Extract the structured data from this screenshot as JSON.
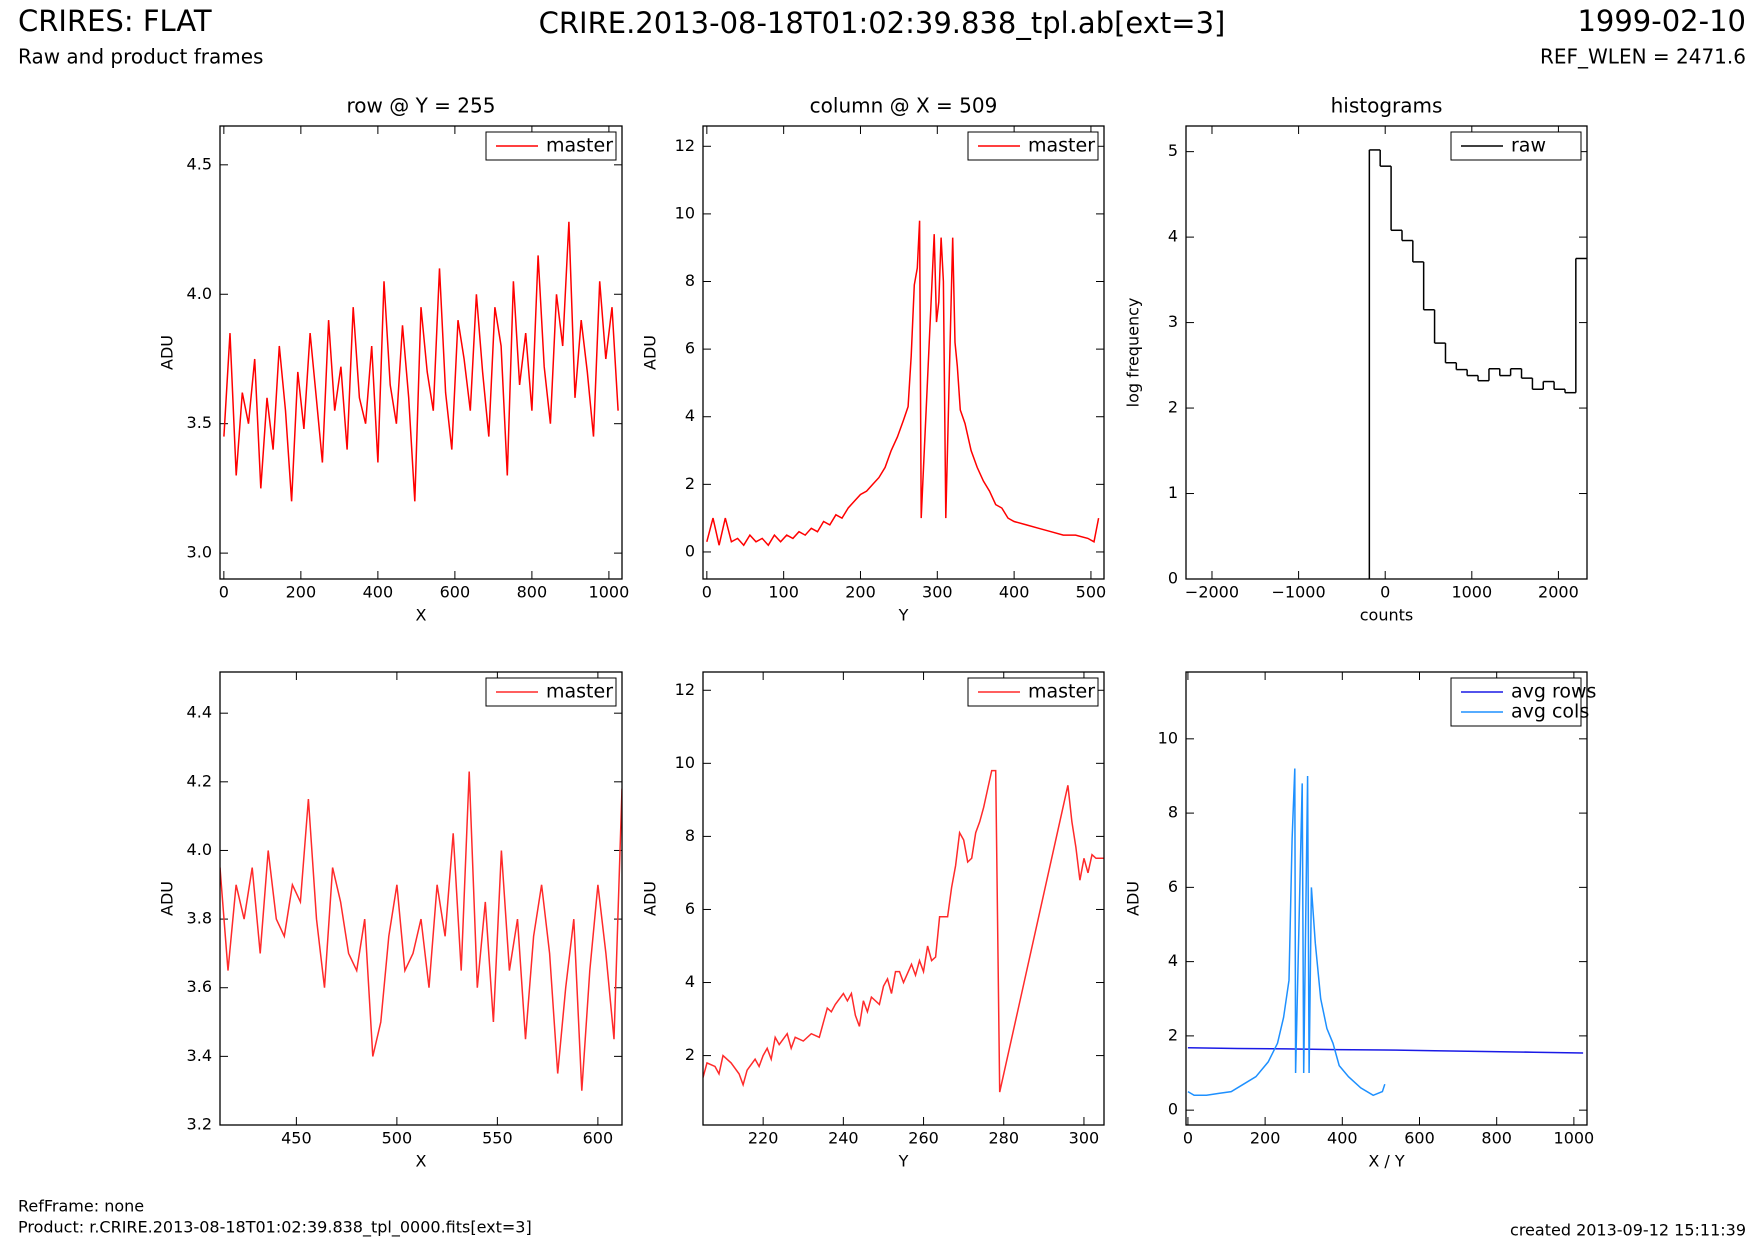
{
  "header": {
    "title": "CRIRES: FLAT",
    "subtitle": "Raw and product frames",
    "file": "CRIRE.2013-08-18T01:02:39.838_tpl.ab[ext=3]",
    "date": "1999-02-10",
    "ref_wlen": "REF_WLEN = 2471.6"
  },
  "footer": {
    "refframe": "RefFrame: none",
    "product": "Product: r.CRIRE.2013-08-18T01:02:39.838_tpl_0000.fits[ext=3]",
    "created": "created 2013-09-12 15:11:39"
  },
  "chart_data": [
    {
      "type": "line",
      "title": "row @ Y = 255",
      "xlabel": "X",
      "ylabel": "ADU",
      "legend": "upper right",
      "xlim": [
        -10,
        1034
      ],
      "ylim": [
        2.9,
        4.65
      ],
      "xticks": [
        0,
        200,
        400,
        600,
        800,
        1000
      ],
      "yticks": [
        {
          "value": 3,
          "label": "3.0"
        },
        3.5,
        {
          "value": 4,
          "label": "4.0"
        },
        4.5
      ],
      "series": [
        {
          "name": "master",
          "color": "#ff0000",
          "x": [
            0,
            16,
            32,
            48,
            64,
            80,
            96,
            112,
            128,
            144,
            160,
            176,
            192,
            208,
            224,
            240,
            256,
            272,
            288,
            304,
            320,
            336,
            352,
            368,
            384,
            400,
            416,
            432,
            448,
            464,
            480,
            496,
            512,
            528,
            544,
            560,
            576,
            592,
            608,
            624,
            640,
            656,
            672,
            688,
            704,
            720,
            736,
            752,
            768,
            784,
            800,
            816,
            832,
            848,
            864,
            880,
            896,
            912,
            928,
            944,
            960,
            976,
            992,
            1008,
            1024
          ],
          "values": [
            3.45,
            3.85,
            3.3,
            3.62,
            3.5,
            3.75,
            3.25,
            3.6,
            3.4,
            3.8,
            3.55,
            3.2,
            3.7,
            3.48,
            3.85,
            3.6,
            3.35,
            3.9,
            3.55,
            3.72,
            3.4,
            3.95,
            3.6,
            3.5,
            3.8,
            3.35,
            4.05,
            3.65,
            3.5,
            3.88,
            3.6,
            3.2,
            3.95,
            3.7,
            3.55,
            4.1,
            3.62,
            3.4,
            3.9,
            3.75,
            3.55,
            4.0,
            3.7,
            3.45,
            3.95,
            3.8,
            3.3,
            4.05,
            3.65,
            3.85,
            3.55,
            4.15,
            3.72,
            3.5,
            4.0,
            3.8,
            4.28,
            3.6,
            3.9,
            3.7,
            3.45,
            4.05,
            3.75,
            3.95,
            3.55
          ]
        }
      ]
    },
    {
      "type": "line",
      "title": "column @ X = 509",
      "xlabel": "Y",
      "ylabel": "ADU",
      "legend": "upper right",
      "xlim": [
        -5,
        517
      ],
      "ylim": [
        -0.8,
        12.6
      ],
      "xticks": [
        0,
        100,
        200,
        300,
        400,
        500
      ],
      "yticks": [
        0,
        2,
        4,
        6,
        8,
        10,
        12
      ],
      "series": [
        {
          "name": "master",
          "color": "#ff0000",
          "x": [
            0,
            8,
            16,
            24,
            32,
            40,
            48,
            56,
            64,
            72,
            80,
            88,
            96,
            104,
            112,
            120,
            128,
            136,
            144,
            152,
            160,
            168,
            176,
            184,
            192,
            200,
            208,
            216,
            224,
            232,
            240,
            248,
            256,
            262,
            266,
            270,
            274,
            277,
            279,
            296,
            299,
            302,
            305,
            308,
            311,
            320,
            323,
            326,
            330,
            336,
            344,
            352,
            360,
            368,
            376,
            384,
            392,
            400,
            416,
            432,
            448,
            464,
            480,
            496,
            504,
            510
          ],
          "values": [
            0.3,
            1.0,
            0.2,
            1.0,
            0.3,
            0.4,
            0.2,
            0.5,
            0.3,
            0.4,
            0.2,
            0.5,
            0.3,
            0.5,
            0.4,
            0.6,
            0.5,
            0.7,
            0.6,
            0.9,
            0.8,
            1.1,
            1.0,
            1.3,
            1.5,
            1.7,
            1.8,
            2.0,
            2.2,
            2.5,
            3.0,
            3.4,
            3.9,
            4.3,
            5.8,
            7.9,
            8.4,
            9.8,
            1.0,
            9.4,
            6.8,
            7.4,
            9.3,
            8.0,
            1.0,
            9.3,
            6.2,
            5.5,
            4.2,
            3.8,
            3.0,
            2.5,
            2.1,
            1.8,
            1.4,
            1.3,
            1.0,
            0.9,
            0.8,
            0.7,
            0.6,
            0.5,
            0.5,
            0.4,
            0.3,
            1.0
          ]
        }
      ]
    },
    {
      "type": "histogram",
      "title": "histograms",
      "xlabel": "counts",
      "ylabel": "log frequency",
      "legend": "upper right",
      "xlim": [
        -2300,
        2330
      ],
      "ylim": [
        0,
        5.3
      ],
      "xticks": [
        {
          "value": -2000,
          "label": "−2000"
        },
        {
          "value": -1000,
          "label": "−1000"
        },
        0,
        1000,
        2000
      ],
      "yticks": [
        0,
        1,
        2,
        3,
        4,
        5
      ],
      "series": [
        {
          "name": "raw",
          "color": "#000000",
          "bins": [
            -183,
            -58,
            68,
            194,
            319,
            444,
            570,
            696,
            821,
            946,
            1072,
            1198,
            1323,
            1448,
            1574,
            1700,
            1825,
            1950,
            2076,
            2201,
            2327
          ],
          "values": [
            5.02,
            4.83,
            4.08,
            3.96,
            3.71,
            3.15,
            2.76,
            2.53,
            2.45,
            2.38,
            2.32,
            2.46,
            2.38,
            2.46,
            2.35,
            2.22,
            2.31,
            2.22,
            2.18,
            3.75
          ]
        }
      ]
    },
    {
      "type": "line",
      "xlabel": "X",
      "ylabel": "ADU",
      "legend": "upper right",
      "xlim": [
        412,
        612
      ],
      "ylim": [
        3.2,
        4.52
      ],
      "xticks": [
        450,
        500,
        550,
        600
      ],
      "yticks": [
        3.2,
        3.4,
        3.6,
        3.8,
        {
          "value": 4,
          "label": "4.0"
        },
        4.2,
        4.4
      ],
      "series": [
        {
          "name": "master",
          "color": "#ff2a2a",
          "x": [
            412,
            416,
            420,
            424,
            428,
            432,
            436,
            440,
            444,
            448,
            452,
            456,
            460,
            464,
            468,
            472,
            476,
            480,
            484,
            488,
            492,
            496,
            500,
            504,
            508,
            512,
            516,
            520,
            524,
            528,
            532,
            536,
            540,
            544,
            548,
            552,
            556,
            560,
            564,
            568,
            572,
            576,
            580,
            584,
            588,
            592,
            596,
            600,
            604,
            608,
            612
          ],
          "values": [
            3.95,
            3.65,
            3.9,
            3.8,
            3.95,
            3.7,
            4.0,
            3.8,
            3.75,
            3.9,
            3.85,
            4.15,
            3.8,
            3.6,
            3.95,
            3.85,
            3.7,
            3.65,
            3.8,
            3.4,
            3.5,
            3.75,
            3.9,
            3.65,
            3.7,
            3.8,
            3.6,
            3.9,
            3.75,
            4.05,
            3.65,
            4.23,
            3.6,
            3.85,
            3.5,
            4.0,
            3.65,
            3.8,
            3.45,
            3.75,
            3.9,
            3.7,
            3.35,
            3.6,
            3.8,
            3.3,
            3.65,
            3.9,
            3.7,
            3.45,
            4.18
          ]
        }
      ]
    },
    {
      "type": "line",
      "xlabel": "Y",
      "ylabel": "ADU",
      "legend": "upper right",
      "xlim": [
        205,
        305
      ],
      "ylim": [
        0.1,
        12.5
      ],
      "xticks": [
        220,
        240,
        260,
        280,
        300
      ],
      "yticks": [
        2,
        4,
        6,
        8,
        10,
        12
      ],
      "series": [
        {
          "name": "master",
          "color": "#ff2a2a",
          "x": [
            205,
            206,
            208,
            209,
            210,
            212,
            214,
            215,
            216,
            218,
            219,
            220,
            221,
            222,
            223,
            224,
            226,
            227,
            228,
            230,
            232,
            234,
            236,
            237,
            238,
            240,
            241,
            242,
            243,
            244,
            245,
            246,
            247,
            249,
            250,
            251,
            252,
            253,
            254,
            255,
            257,
            258,
            259,
            260,
            261,
            262,
            263,
            264,
            266,
            267,
            268,
            269,
            270,
            271,
            272,
            273,
            274,
            275,
            276,
            277,
            278,
            279,
            296,
            297,
            298,
            299,
            300,
            301,
            302,
            303,
            305
          ],
          "values": [
            1.4,
            1.8,
            1.7,
            1.5,
            2.0,
            1.8,
            1.5,
            1.2,
            1.6,
            1.9,
            1.7,
            2.0,
            2.2,
            1.9,
            2.5,
            2.3,
            2.6,
            2.2,
            2.5,
            2.4,
            2.6,
            2.5,
            3.3,
            3.2,
            3.4,
            3.7,
            3.5,
            3.7,
            3.1,
            2.8,
            3.5,
            3.2,
            3.6,
            3.4,
            3.9,
            4.1,
            3.7,
            4.3,
            4.3,
            4.0,
            4.5,
            4.2,
            4.6,
            4.3,
            5.0,
            4.6,
            4.7,
            5.8,
            5.8,
            6.6,
            7.2,
            8.1,
            7.9,
            7.3,
            7.4,
            8.1,
            8.4,
            8.8,
            9.3,
            9.8,
            9.8,
            1.0,
            9.4,
            8.4,
            7.7,
            6.8,
            7.4,
            7.0,
            7.5,
            7.4,
            7.4
          ]
        }
      ]
    },
    {
      "type": "line",
      "xlabel": "X / Y",
      "ylabel": "ADU",
      "legend": "upper right",
      "xlim": [
        -5,
        1034
      ],
      "ylim": [
        -0.4,
        11.8
      ],
      "xticks": [
        0,
        200,
        400,
        600,
        800,
        1000
      ],
      "yticks": [
        0,
        2,
        4,
        6,
        8,
        10
      ],
      "series": [
        {
          "name": "avg rows",
          "color": "#1a1ae6",
          "x": [
            0,
            128,
            256,
            384,
            512,
            640,
            768,
            896,
            1024
          ],
          "values": [
            1.68,
            1.66,
            1.65,
            1.63,
            1.62,
            1.6,
            1.58,
            1.56,
            1.54
          ]
        },
        {
          "name": "avg cols",
          "color": "#1e90ff",
          "x": [
            0,
            16,
            48,
            80,
            112,
            144,
            176,
            208,
            232,
            248,
            262,
            270,
            277,
            279,
            296,
            300,
            310,
            314,
            320,
            330,
            344,
            360,
            376,
            392,
            416,
            448,
            480,
            504,
            510
          ],
          "values": [
            0.5,
            0.4,
            0.4,
            0.45,
            0.5,
            0.7,
            0.9,
            1.3,
            1.8,
            2.5,
            3.5,
            7.3,
            9.2,
            1.0,
            8.8,
            1.0,
            9.0,
            1.0,
            6.0,
            4.5,
            3.0,
            2.2,
            1.8,
            1.2,
            0.9,
            0.6,
            0.4,
            0.5,
            0.7
          ]
        }
      ]
    }
  ]
}
